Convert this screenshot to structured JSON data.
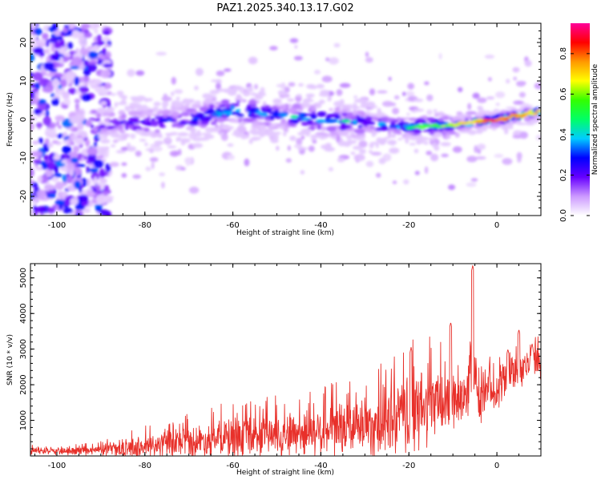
{
  "figure_title": "PAZ1.2025.340.13.17.G02",
  "colors": {
    "snr_line": "#e8302a",
    "background": "#ffffff",
    "axis": "#000000"
  },
  "chart_data": [
    {
      "type": "heatmap",
      "title": "PAZ1.2025.340.13.17.G02",
      "xlabel": "Height of straight line (km)",
      "ylabel": "Frequency (Hz)",
      "xlim": [
        -106,
        10
      ],
      "ylim": [
        -25,
        25
      ],
      "x_ticks": [
        -100,
        -80,
        -60,
        -40,
        -20,
        0
      ],
      "y_ticks": [
        -20,
        -10,
        0,
        10,
        20
      ],
      "colorbar": {
        "label": "Normalized spectral amplitude",
        "range": [
          0.0,
          0.95
        ],
        "ticks": [
          0.0,
          0.2,
          0.4,
          0.6,
          0.8
        ],
        "colormap": [
          "#ffffff",
          "#cc99ff",
          "#6600ff",
          "#0000ff",
          "#00ccff",
          "#00ff66",
          "#33ff00",
          "#ffff00",
          "#ff9900",
          "#ff0000",
          "#ff0099"
        ]
      },
      "ridge": {
        "x": [
          -90,
          -80,
          -70,
          -60,
          -50,
          -40,
          -30,
          -20,
          -10,
          0,
          10
        ],
        "frequency": [
          -1,
          -1,
          0,
          2.5,
          1,
          0,
          -1,
          -2,
          -1.5,
          0,
          2
        ],
        "amplitude": [
          0.3,
          0.35,
          0.4,
          0.5,
          0.45,
          0.5,
          0.45,
          0.55,
          0.65,
          0.9,
          0.75
        ]
      },
      "noise_region_x": [
        -106,
        -88
      ]
    },
    {
      "type": "line",
      "xlabel": "Height of straight line (km)",
      "ylabel": "SNR (10 * v/v)",
      "xlim": [
        -106,
        10
      ],
      "ylim": [
        0,
        5400
      ],
      "x_ticks": [
        -100,
        -80,
        -60,
        -40,
        -20,
        0
      ],
      "y_ticks": [
        1000,
        2000,
        3000,
        4000,
        5000
      ],
      "series": [
        {
          "name": "SNR",
          "envelope_x": [
            -106,
            -100,
            -95,
            -90,
            -85,
            -80,
            -75,
            -70,
            -65,
            -60,
            -55,
            -50,
            -45,
            -40,
            -35,
            -30,
            -25,
            -20,
            -17,
            -15,
            -12,
            -10,
            -8,
            -6,
            -5,
            -4,
            -2,
            0,
            2,
            4,
            6,
            8,
            10
          ],
          "envelope_mean": [
            150,
            130,
            130,
            160,
            200,
            250,
            330,
            380,
            450,
            500,
            560,
            600,
            650,
            700,
            750,
            850,
            950,
            1100,
            1300,
            1400,
            1500,
            1600,
            1750,
            1900,
            1900,
            1500,
            1800,
            1900,
            2200,
            2400,
            2500,
            2600,
            2700
          ],
          "envelope_amp": [
            80,
            80,
            90,
            120,
            200,
            280,
            320,
            380,
            420,
            480,
            480,
            500,
            550,
            600,
            650,
            700,
            850,
            1000,
            1000,
            900,
            800,
            900,
            700,
            700,
            600,
            500,
            500,
            500,
            500,
            600,
            500,
            500,
            400
          ],
          "peaks": [
            {
              "x": -5.5,
              "y": 5350
            },
            {
              "x": -10.5,
              "y": 3750
            },
            {
              "x": -19.5,
              "y": 3050
            },
            {
              "x": 5,
              "y": 3550
            },
            {
              "x": 8,
              "y": 3150
            },
            {
              "x": 2.5,
              "y": 3000
            }
          ]
        }
      ]
    }
  ]
}
